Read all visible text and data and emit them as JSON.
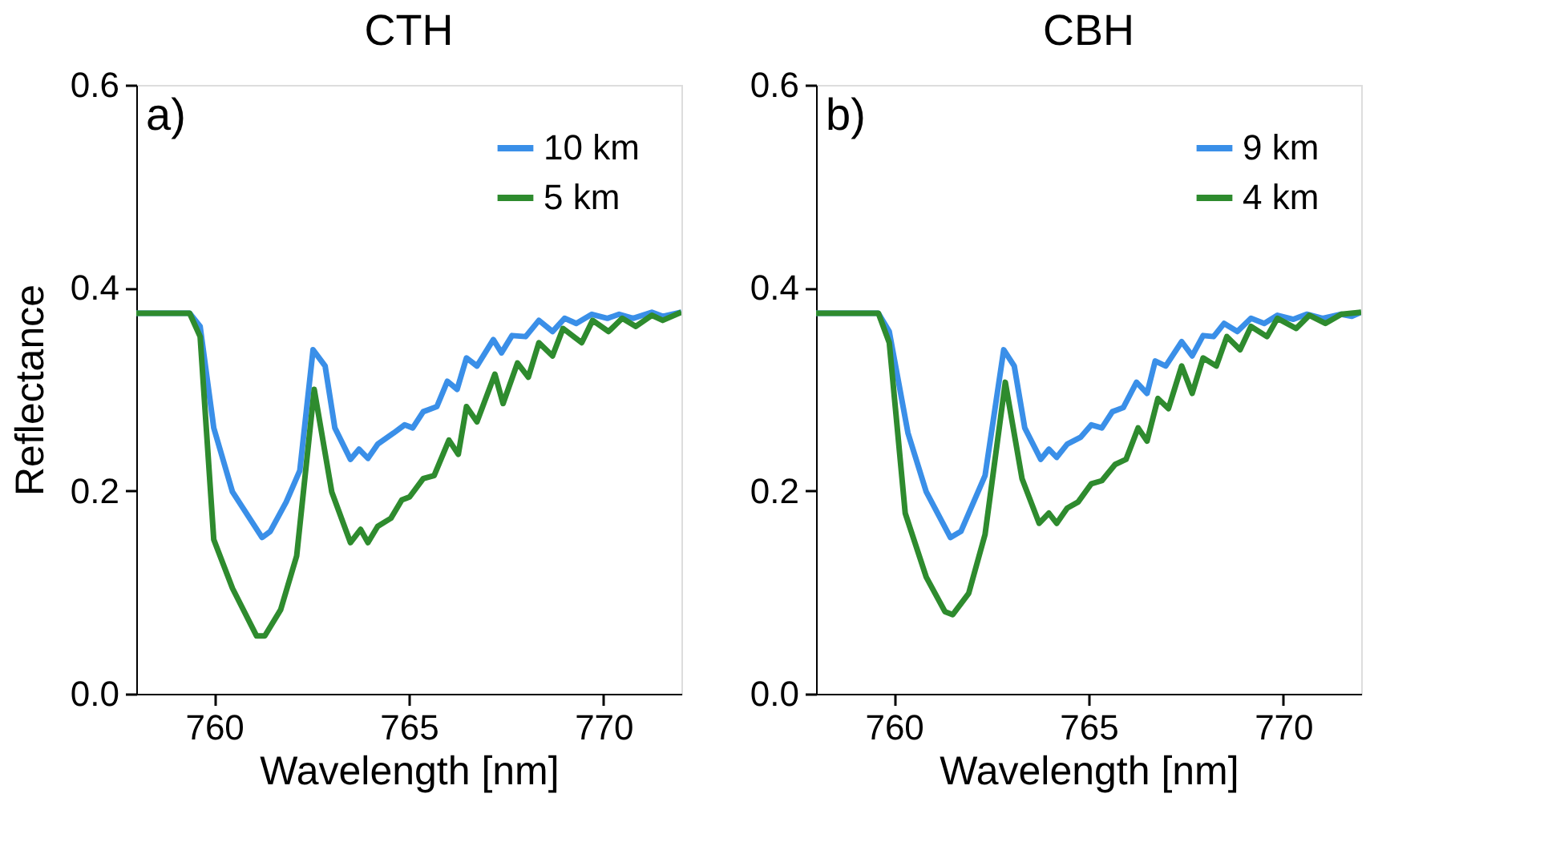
{
  "chart_data": [
    {
      "type": "line",
      "title": "CTH",
      "xlabel": "Wavelength [nm]",
      "ylabel": "Reflectance",
      "annotations": [
        "a)"
      ],
      "legend": "top right",
      "xlim": [
        758,
        772
      ],
      "ylim": [
        0,
        0.6
      ],
      "xticks": [
        760,
        765,
        770
      ],
      "yticks": [
        {
          "value": 0,
          "label": "0.0"
        },
        0.2,
        0.4,
        0.6
      ],
      "series": [
        {
          "name": "10 km",
          "color": "#3a8fe8",
          "x": [
            758,
            759.37,
            759.64,
            759.99,
            760.47,
            761.23,
            761.44,
            761.85,
            762.2,
            762.54,
            762.85,
            763.1,
            763.5,
            763.72,
            763.95,
            764.2,
            764.61,
            764.89,
            765.1,
            765.37,
            765.72,
            765.99,
            766.24,
            766.48,
            766.75,
            767.17,
            767.38,
            767.65,
            768.0,
            768.34,
            768.69,
            769.0,
            769.3,
            769.7,
            770.1,
            770.4,
            770.76,
            771.24,
            771.52,
            772
          ],
          "values": [
            0.375,
            0.375,
            0.362,
            0.262,
            0.199,
            0.154,
            0.16,
            0.189,
            0.22,
            0.339,
            0.323,
            0.262,
            0.231,
            0.241,
            0.232,
            0.246,
            0.257,
            0.265,
            0.262,
            0.278,
            0.283,
            0.308,
            0.3,
            0.331,
            0.323,
            0.349,
            0.336,
            0.353,
            0.352,
            0.368,
            0.357,
            0.37,
            0.365,
            0.374,
            0.37,
            0.374,
            0.37,
            0.376,
            0.372,
            0.376
          ]
        },
        {
          "name": "5 km",
          "color": "#2e8b2e",
          "x": [
            758,
            759.37,
            759.64,
            759.99,
            760.47,
            761.09,
            761.3,
            761.71,
            762.12,
            762.57,
            763.02,
            763.5,
            763.76,
            763.95,
            764.2,
            764.54,
            764.82,
            765.02,
            765.37,
            765.65,
            766.03,
            766.27,
            766.48,
            766.75,
            767.21,
            767.42,
            767.79,
            768.07,
            768.34,
            768.69,
            768.96,
            769.44,
            769.72,
            770.13,
            770.48,
            770.83,
            771.24,
            771.52,
            772
          ],
          "values": [
            0.375,
            0.375,
            0.352,
            0.152,
            0.104,
            0.057,
            0.057,
            0.083,
            0.136,
            0.3,
            0.199,
            0.149,
            0.162,
            0.149,
            0.165,
            0.173,
            0.191,
            0.194,
            0.212,
            0.215,
            0.25,
            0.236,
            0.283,
            0.268,
            0.315,
            0.286,
            0.326,
            0.312,
            0.346,
            0.333,
            0.36,
            0.346,
            0.368,
            0.357,
            0.37,
            0.362,
            0.373,
            0.368,
            0.376
          ]
        }
      ]
    },
    {
      "type": "line",
      "title": "CBH",
      "xlabel": "Wavelength [nm]",
      "annotations": [
        "b)"
      ],
      "legend": "top right",
      "xlim": [
        758,
        772
      ],
      "ylim": [
        0,
        0.6
      ],
      "xticks": [
        760,
        765,
        770
      ],
      "yticks": [
        {
          "value": 0,
          "label": "0.0"
        },
        0.2,
        0.4,
        0.6
      ],
      "series": [
        {
          "name": "9 km",
          "color": "#3a8fe8",
          "x": [
            758,
            759.6,
            759.88,
            760.36,
            760.83,
            761.45,
            761.72,
            762.34,
            762.82,
            763.09,
            763.36,
            763.77,
            763.98,
            764.18,
            764.45,
            764.8,
            765.07,
            765.34,
            765.61,
            765.89,
            766.23,
            766.5,
            766.71,
            766.98,
            767.39,
            767.66,
            767.94,
            768.21,
            768.48,
            768.82,
            769.17,
            769.51,
            769.85,
            770.26,
            770.6,
            771.01,
            771.49,
            771.76,
            772
          ],
          "values": [
            0.375,
            0.375,
            0.357,
            0.257,
            0.199,
            0.154,
            0.16,
            0.215,
            0.339,
            0.323,
            0.262,
            0.231,
            0.241,
            0.233,
            0.246,
            0.253,
            0.265,
            0.262,
            0.278,
            0.282,
            0.307,
            0.296,
            0.328,
            0.323,
            0.347,
            0.333,
            0.353,
            0.352,
            0.365,
            0.357,
            0.37,
            0.365,
            0.373,
            0.369,
            0.374,
            0.37,
            0.374,
            0.372,
            0.376
          ]
        },
        {
          "name": "4 km",
          "color": "#2e8b2e",
          "x": [
            758,
            759.6,
            759.88,
            760.29,
            760.83,
            761.31,
            761.51,
            761.92,
            762.34,
            762.86,
            763.29,
            763.73,
            763.98,
            764.18,
            764.45,
            764.73,
            765.07,
            765.34,
            765.68,
            765.96,
            766.27,
            766.5,
            766.78,
            767.05,
            767.39,
            767.66,
            767.94,
            768.28,
            768.55,
            768.89,
            769.17,
            769.58,
            769.85,
            770.33,
            770.67,
            771.08,
            771.49,
            772
          ],
          "values": [
            0.375,
            0.375,
            0.346,
            0.178,
            0.115,
            0.081,
            0.078,
            0.099,
            0.157,
            0.307,
            0.212,
            0.168,
            0.178,
            0.168,
            0.183,
            0.189,
            0.207,
            0.21,
            0.226,
            0.231,
            0.262,
            0.249,
            0.291,
            0.281,
            0.323,
            0.296,
            0.331,
            0.323,
            0.352,
            0.339,
            0.362,
            0.352,
            0.37,
            0.36,
            0.373,
            0.365,
            0.374,
            0.376
          ]
        }
      ]
    }
  ]
}
